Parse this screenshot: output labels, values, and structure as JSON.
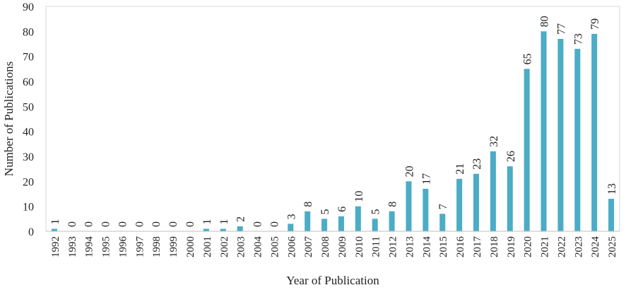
{
  "chart_data": {
    "type": "bar",
    "title": "",
    "xlabel": "Year of Publication",
    "ylabel": "Number of Publications",
    "ylim": [
      0,
      90
    ],
    "yticks": [
      0,
      10,
      20,
      30,
      40,
      50,
      60,
      70,
      80,
      90
    ],
    "grid": false,
    "legend": "none",
    "bar_color": "#4bacc6",
    "categories": [
      "1992",
      "1993",
      "1994",
      "1995",
      "1996",
      "1997",
      "1998",
      "1999",
      "2000",
      "2001",
      "2002",
      "2003",
      "2004",
      "2005",
      "2006",
      "2007",
      "2008",
      "2009",
      "2010",
      "2011",
      "2012",
      "2013",
      "2014",
      "2015",
      "2016",
      "2017",
      "2018",
      "2019",
      "2020",
      "2021",
      "2022",
      "2023",
      "2024",
      "2025"
    ],
    "values": [
      1,
      0,
      0,
      0,
      0,
      0,
      0,
      0,
      0,
      1,
      1,
      2,
      0,
      0,
      3,
      8,
      5,
      6,
      10,
      5,
      8,
      20,
      17,
      7,
      21,
      23,
      32,
      26,
      65,
      80,
      77,
      73,
      79,
      13
    ]
  }
}
